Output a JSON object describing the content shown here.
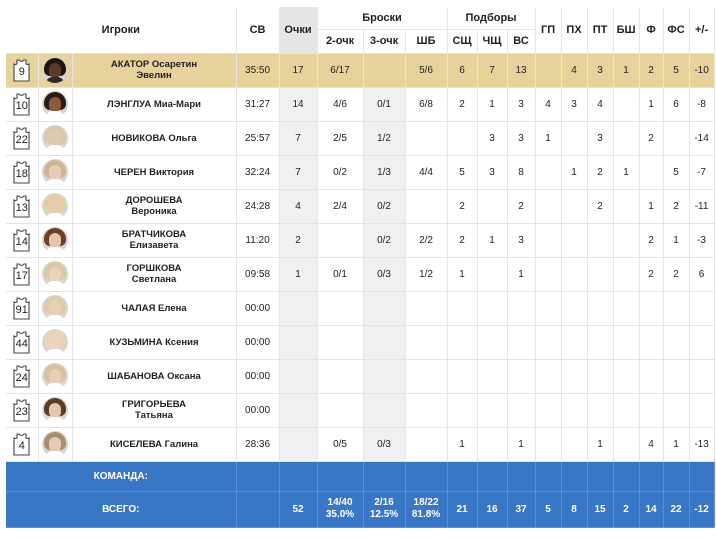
{
  "header": {
    "players": "Игроки",
    "minutes": "СВ",
    "points": "Очки",
    "shots_group": "Броски",
    "two_pt": "2-очк",
    "three_pt": "3-очк",
    "free_throw": "ШБ",
    "rebounds_group": "Подборы",
    "def_reb": "СЩ",
    "off_reb": "ЧЩ",
    "total_reb": "ВС",
    "assists": "ГП",
    "turnovers": "ПХ",
    "steals": "ПТ",
    "blocks": "БШ",
    "fouls": "Ф",
    "fouls_drawn": "ФС",
    "plus_minus": "+/-"
  },
  "players": [
    {
      "number": "9",
      "name": [
        "АКАТОР Осаретин",
        "Эвелин"
      ],
      "avatar": {
        "skin": "#5a3a28",
        "hair": "#1e1410",
        "shirt": "#2b2b2b"
      },
      "highlight": true,
      "min": "35:50",
      "pts": "17",
      "fg2": "6/17",
      "fg3": "",
      "ft": "5/6",
      "dreb": "6",
      "oreb": "7",
      "treb": "13",
      "ast": "",
      "to": "4",
      "stl": "3",
      "blk": "1",
      "pf": "2",
      "fd": "5",
      "pm": "-10"
    },
    {
      "number": "10",
      "name": [
        "ЛЭНГЛУА Миа-Мари"
      ],
      "avatar": {
        "skin": "#8a5a3e",
        "hair": "#2a1a12",
        "shirt": "#ffffff"
      },
      "highlight": false,
      "min": "31:27",
      "pts": "14",
      "fg2": "4/6",
      "fg3": "0/1",
      "ft": "6/8",
      "dreb": "2",
      "oreb": "1",
      "treb": "3",
      "ast": "4",
      "to": "3",
      "stl": "4",
      "blk": "",
      "pf": "1",
      "fd": "6",
      "pm": "-8"
    },
    {
      "number": "22",
      "name": [
        "НОВИКОВА Ольга"
      ],
      "avatar": {
        "skin": "#e2c8b0",
        "hair": "#d9c8ae",
        "shirt": "#ffffff"
      },
      "highlight": false,
      "min": "25:57",
      "pts": "7",
      "fg2": "2/5",
      "fg3": "1/2",
      "ft": "",
      "dreb": "",
      "oreb": "3",
      "treb": "3",
      "ast": "1",
      "to": "",
      "stl": "3",
      "blk": "",
      "pf": "2",
      "fd": "",
      "pm": "-14"
    },
    {
      "number": "18",
      "name": [
        "ЧЕРЕН Виктория"
      ],
      "avatar": {
        "skin": "#e6cdb6",
        "hair": "#cdb595",
        "shirt": "#ffffff"
      },
      "highlight": false,
      "min": "32:24",
      "pts": "7",
      "fg2": "0/2",
      "fg3": "1/3",
      "ft": "4/4",
      "dreb": "5",
      "oreb": "3",
      "treb": "8",
      "ast": "",
      "to": "1",
      "stl": "2",
      "blk": "1",
      "pf": "",
      "fd": "5",
      "pm": "-7"
    },
    {
      "number": "13",
      "name": [
        "ДОРОШЕВА",
        "Вероника"
      ],
      "avatar": {
        "skin": "#e6ccb3",
        "hair": "#e2cfa6",
        "shirt": "#ffffff"
      },
      "highlight": false,
      "min": "24:28",
      "pts": "4",
      "fg2": "2/4",
      "fg3": "0/2",
      "ft": "",
      "dreb": "2",
      "oreb": "",
      "treb": "2",
      "ast": "",
      "to": "",
      "stl": "2",
      "blk": "",
      "pf": "1",
      "fd": "2",
      "pm": "-11"
    },
    {
      "number": "14",
      "name": [
        "БРАТЧИКОВА",
        "Елизавета"
      ],
      "avatar": {
        "skin": "#e4c5ae",
        "hair": "#6a4026",
        "shirt": "#ffffff"
      },
      "highlight": false,
      "min": "11:20",
      "pts": "2",
      "fg2": "",
      "fg3": "0/2",
      "ft": "2/2",
      "dreb": "2",
      "oreb": "1",
      "treb": "3",
      "ast": "",
      "to": "",
      "stl": "",
      "blk": "",
      "pf": "2",
      "fd": "1",
      "pm": "-3"
    },
    {
      "number": "17",
      "name": [
        "ГОРШКОВА",
        "Светлана"
      ],
      "avatar": {
        "skin": "#ead2bd",
        "hair": "#ddc8a2",
        "shirt": "#ffffff"
      },
      "highlight": false,
      "min": "09:58",
      "pts": "1",
      "fg2": "0/1",
      "fg3": "0/3",
      "ft": "1/2",
      "dreb": "1",
      "oreb": "",
      "treb": "1",
      "ast": "",
      "to": "",
      "stl": "",
      "blk": "",
      "pf": "2",
      "fd": "2",
      "pm": "6"
    },
    {
      "number": "91",
      "name": [
        "ЧАЛАЯ Елена"
      ],
      "avatar": {
        "skin": "#e8cfb8",
        "hair": "#e0cba8",
        "shirt": "#ffffff"
      },
      "highlight": false,
      "min": "00:00",
      "pts": "",
      "fg2": "",
      "fg3": "",
      "ft": "",
      "dreb": "",
      "oreb": "",
      "treb": "",
      "ast": "",
      "to": "",
      "stl": "",
      "blk": "",
      "pf": "",
      "fd": "",
      "pm": ""
    },
    {
      "number": "44",
      "name": [
        "КУЗЬМИНА Ксения"
      ],
      "avatar": {
        "skin": "#ebd3bf",
        "hair": "#e6d4b4",
        "shirt": "#ffffff"
      },
      "highlight": false,
      "min": "00:00",
      "pts": "",
      "fg2": "",
      "fg3": "",
      "ft": "",
      "dreb": "",
      "oreb": "",
      "treb": "",
      "ast": "",
      "to": "",
      "stl": "",
      "blk": "",
      "pf": "",
      "fd": "",
      "pm": ""
    },
    {
      "number": "24",
      "name": [
        "ШАБАНОВА Оксана"
      ],
      "avatar": {
        "skin": "#e9cfba",
        "hair": "#d8c19f",
        "shirt": "#ffffff"
      },
      "highlight": false,
      "min": "00:00",
      "pts": "",
      "fg2": "",
      "fg3": "",
      "ft": "",
      "dreb": "",
      "oreb": "",
      "treb": "",
      "ast": "",
      "to": "",
      "stl": "",
      "blk": "",
      "pf": "",
      "fd": "",
      "pm": ""
    },
    {
      "number": "23",
      "name": [
        "ГРИГОРЬЕВА",
        "Татьяна"
      ],
      "avatar": {
        "skin": "#e3c6ae",
        "hair": "#5a3c28",
        "shirt": "#ffffff"
      },
      "highlight": false,
      "min": "00:00",
      "pts": "",
      "fg2": "",
      "fg3": "",
      "ft": "",
      "dreb": "",
      "oreb": "",
      "treb": "",
      "ast": "",
      "to": "",
      "stl": "",
      "blk": "",
      "pf": "",
      "fd": "",
      "pm": ""
    },
    {
      "number": "4",
      "name": [
        "КИСЕЛЕВА Галина"
      ],
      "avatar": {
        "skin": "#e6cbb4",
        "hair": "#a88e70",
        "shirt": "#ffffff"
      },
      "highlight": false,
      "min": "28:36",
      "pts": "",
      "fg2": "0/5",
      "fg3": "0/3",
      "ft": "",
      "dreb": "1",
      "oreb": "",
      "treb": "1",
      "ast": "",
      "to": "",
      "stl": "1",
      "blk": "",
      "pf": "4",
      "fd": "1",
      "pm": "-13"
    }
  ],
  "team_row": {
    "label": "КОМАНДА:"
  },
  "total_row": {
    "label": "ВСЕГО:",
    "pts": "52",
    "fg2": [
      "14/40",
      "35.0%"
    ],
    "fg3": [
      "2/16",
      "12.5%"
    ],
    "ft": [
      "18/22",
      "81.8%"
    ],
    "dreb": "21",
    "oreb": "16",
    "treb": "37",
    "ast": "5",
    "to": "8",
    "stl": "15",
    "blk": "2",
    "pf": "14",
    "fd": "22",
    "pm": "-12"
  },
  "colors": {
    "highlight_row": "#e8d29b",
    "footer_bg": "#3976c6",
    "points_col_bg": "#e6e6e6"
  }
}
